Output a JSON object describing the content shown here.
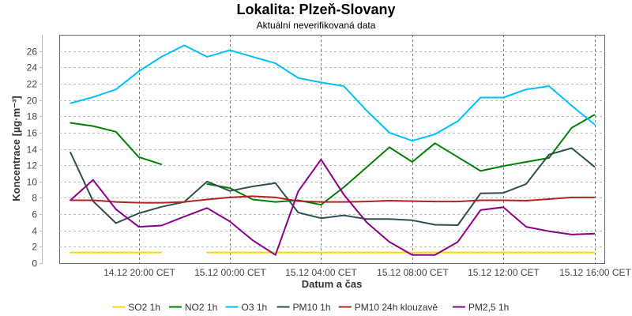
{
  "chart_data": {
    "type": "line",
    "title": "Lokalita: Plzeň-Slovany",
    "subtitle": "Aktuální neverifikovaná data",
    "xlabel": "Datum a čas",
    "ylabel": "Koncentrace [µg·m⁻³]",
    "ylim": [
      0,
      28
    ],
    "yticks": [
      0,
      2,
      4,
      6,
      8,
      10,
      12,
      14,
      16,
      18,
      20,
      22,
      24,
      26
    ],
    "grid": true,
    "legend_position": "bottom",
    "x": [
      "14.12 17:00",
      "14.12 18:00",
      "14.12 19:00",
      "14.12 20:00",
      "14.12 21:00",
      "14.12 22:00",
      "14.12 23:00",
      "15.12 00:00",
      "15.12 01:00",
      "15.12 02:00",
      "15.12 03:00",
      "15.12 04:00",
      "15.12 05:00",
      "15.12 06:00",
      "15.12 07:00",
      "15.12 08:00",
      "15.12 09:00",
      "15.12 10:00",
      "15.12 11:00",
      "15.12 12:00",
      "15.12 13:00",
      "15.12 14:00",
      "15.12 15:00",
      "15.12 16:00"
    ],
    "xticks": [
      {
        "index": 3,
        "label": "14.12 20:00 CET"
      },
      {
        "index": 7,
        "label": "15.12 00:00 CET"
      },
      {
        "index": 11,
        "label": "15.12 04:00 CET"
      },
      {
        "index": 15,
        "label": "15.12 08:00 CET"
      },
      {
        "index": 19,
        "label": "15.12 12:00 CET"
      },
      {
        "index": 23,
        "label": "15.12 16:00 CET"
      }
    ],
    "series": [
      {
        "name": "SO2 1h",
        "color": "#ffd700",
        "values": [
          1.3,
          1.3,
          1.3,
          1.3,
          1.3,
          null,
          1.3,
          1.3,
          1.3,
          1.3,
          1.3,
          1.3,
          1.3,
          1.3,
          1.3,
          1.3,
          1.3,
          1.3,
          1.3,
          1.3,
          1.3,
          1.3,
          1.3,
          1.3
        ]
      },
      {
        "name": "NO2 1h",
        "color": "#008000",
        "values": [
          17.2,
          16.8,
          16.1,
          13.0,
          12.1,
          null,
          9.7,
          9.2,
          7.8,
          7.5,
          7.7,
          7.15,
          9.3,
          11.75,
          14.2,
          12.4,
          14.7,
          13.0,
          11.3,
          11.9,
          12.4,
          12.9,
          16.6,
          18.2
        ]
      },
      {
        "name": "O3 1h",
        "color": "#00bfff",
        "values": [
          19.6,
          20.35,
          21.3,
          23.5,
          25.3,
          26.7,
          25.3,
          26.1,
          25.3,
          24.5,
          22.7,
          22.15,
          21.7,
          18.7,
          16.0,
          15.0,
          15.8,
          17.4,
          20.3,
          20.3,
          21.3,
          21.7,
          19.3,
          17.0
        ]
      },
      {
        "name": "PM10 1h",
        "color": "#2f4f4f",
        "values": [
          13.6,
          7.6,
          4.9,
          6.1,
          6.9,
          7.5,
          10.0,
          8.85,
          9.4,
          9.8,
          6.2,
          5.5,
          5.85,
          5.4,
          5.4,
          5.25,
          4.7,
          4.65,
          8.55,
          8.6,
          9.7,
          13.3,
          14.1,
          11.8
        ]
      },
      {
        "name": "PM10 24h klouzavě",
        "color": "#b22222",
        "values": [
          7.7,
          7.7,
          7.5,
          7.4,
          7.4,
          7.5,
          7.8,
          8.05,
          8.2,
          8.05,
          7.6,
          7.5,
          7.5,
          7.55,
          7.65,
          7.6,
          7.55,
          7.55,
          7.7,
          7.7,
          7.65,
          7.85,
          8.05,
          8.05
        ]
      },
      {
        "name": "PM2,5 1h",
        "color": "#8b008b",
        "values": [
          7.7,
          10.2,
          6.6,
          4.45,
          4.6,
          5.7,
          6.75,
          5.1,
          2.8,
          1.0,
          8.8,
          12.7,
          8.4,
          5.0,
          2.6,
          1.0,
          1.0,
          2.6,
          6.5,
          6.85,
          4.45,
          3.9,
          3.5,
          3.6
        ]
      }
    ]
  }
}
